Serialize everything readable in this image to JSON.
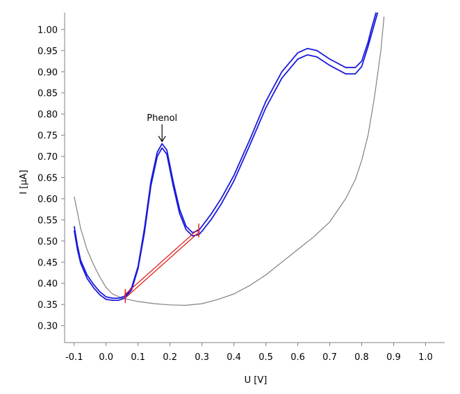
{
  "chart_data": {
    "type": "line",
    "title": "",
    "xlabel": "U [V]",
    "ylabel": "I [µA]",
    "xlim": [
      -0.13,
      1.06
    ],
    "ylim": [
      0.26,
      1.04
    ],
    "grid": false,
    "legend": "none",
    "x_ticks": [
      "-0.1",
      "0.0",
      "0.1",
      "0.2",
      "0.3",
      "0.4",
      "0.5",
      "0.6",
      "0.7",
      "0.8",
      "0.9",
      "1.0"
    ],
    "y_ticks": [
      "0.30",
      "0.35",
      "0.40",
      "0.45",
      "0.50",
      "0.55",
      "0.60",
      "0.65",
      "0.70",
      "0.75",
      "0.80",
      "0.85",
      "0.90",
      "0.95",
      "1.00"
    ],
    "series": [
      {
        "color": "#808080",
        "points": [
          [
            -0.1,
            0.605
          ],
          [
            -0.08,
            0.53
          ],
          [
            -0.06,
            0.48
          ],
          [
            -0.04,
            0.445
          ],
          [
            -0.02,
            0.415
          ],
          [
            0.0,
            0.39
          ],
          [
            0.02,
            0.375
          ],
          [
            0.05,
            0.365
          ],
          [
            0.1,
            0.357
          ],
          [
            0.15,
            0.352
          ],
          [
            0.2,
            0.349
          ],
          [
            0.25,
            0.348
          ],
          [
            0.3,
            0.352
          ],
          [
            0.35,
            0.362
          ],
          [
            0.4,
            0.375
          ],
          [
            0.45,
            0.395
          ],
          [
            0.5,
            0.42
          ],
          [
            0.55,
            0.45
          ],
          [
            0.6,
            0.48
          ],
          [
            0.65,
            0.51
          ],
          [
            0.7,
            0.545
          ],
          [
            0.75,
            0.6
          ],
          [
            0.78,
            0.645
          ],
          [
            0.8,
            0.69
          ],
          [
            0.82,
            0.75
          ],
          [
            0.84,
            0.84
          ],
          [
            0.86,
            0.95
          ],
          [
            0.87,
            1.03
          ]
        ]
      },
      {
        "color": "#1a1adc",
        "points": [
          [
            -0.1,
            0.535
          ],
          [
            -0.09,
            0.49
          ],
          [
            -0.08,
            0.455
          ],
          [
            -0.06,
            0.42
          ],
          [
            -0.04,
            0.398
          ],
          [
            -0.02,
            0.38
          ],
          [
            0.0,
            0.368
          ],
          [
            0.02,
            0.365
          ],
          [
            0.04,
            0.365
          ],
          [
            0.06,
            0.37
          ],
          [
            0.08,
            0.39
          ],
          [
            0.1,
            0.44
          ],
          [
            0.12,
            0.53
          ],
          [
            0.14,
            0.64
          ],
          [
            0.16,
            0.71
          ],
          [
            0.175,
            0.73
          ],
          [
            0.19,
            0.715
          ],
          [
            0.21,
            0.64
          ],
          [
            0.23,
            0.575
          ],
          [
            0.25,
            0.535
          ],
          [
            0.27,
            0.52
          ],
          [
            0.29,
            0.525
          ],
          [
            0.3,
            0.535
          ],
          [
            0.33,
            0.565
          ],
          [
            0.36,
            0.6
          ],
          [
            0.4,
            0.655
          ],
          [
            0.45,
            0.74
          ],
          [
            0.5,
            0.83
          ],
          [
            0.55,
            0.9
          ],
          [
            0.6,
            0.945
          ],
          [
            0.63,
            0.955
          ],
          [
            0.66,
            0.95
          ],
          [
            0.7,
            0.93
          ],
          [
            0.75,
            0.91
          ],
          [
            0.78,
            0.91
          ],
          [
            0.8,
            0.925
          ],
          [
            0.82,
            0.97
          ],
          [
            0.83,
            1.0
          ],
          [
            0.845,
            1.04
          ]
        ]
      },
      {
        "color": "#1a1adc",
        "points": [
          [
            -0.1,
            0.525
          ],
          [
            -0.09,
            0.48
          ],
          [
            -0.08,
            0.448
          ],
          [
            -0.06,
            0.412
          ],
          [
            -0.04,
            0.39
          ],
          [
            -0.02,
            0.373
          ],
          [
            0.0,
            0.362
          ],
          [
            0.02,
            0.36
          ],
          [
            0.04,
            0.36
          ],
          [
            0.06,
            0.366
          ],
          [
            0.08,
            0.385
          ],
          [
            0.1,
            0.435
          ],
          [
            0.12,
            0.52
          ],
          [
            0.14,
            0.63
          ],
          [
            0.16,
            0.7
          ],
          [
            0.175,
            0.72
          ],
          [
            0.19,
            0.705
          ],
          [
            0.21,
            0.63
          ],
          [
            0.23,
            0.565
          ],
          [
            0.25,
            0.527
          ],
          [
            0.27,
            0.512
          ],
          [
            0.29,
            0.515
          ],
          [
            0.3,
            0.523
          ],
          [
            0.33,
            0.552
          ],
          [
            0.36,
            0.587
          ],
          [
            0.4,
            0.642
          ],
          [
            0.45,
            0.727
          ],
          [
            0.5,
            0.815
          ],
          [
            0.55,
            0.885
          ],
          [
            0.6,
            0.93
          ],
          [
            0.63,
            0.94
          ],
          [
            0.66,
            0.935
          ],
          [
            0.7,
            0.915
          ],
          [
            0.75,
            0.895
          ],
          [
            0.78,
            0.895
          ],
          [
            0.8,
            0.912
          ],
          [
            0.82,
            0.96
          ],
          [
            0.835,
            1.0
          ],
          [
            0.85,
            1.04
          ]
        ]
      }
    ],
    "baseline": {
      "color": "#e02020",
      "from": [
        0.06,
        0.37
      ],
      "to": [
        0.29,
        0.525
      ]
    },
    "annotations": [
      {
        "text": "Phenol",
        "x": 0.175,
        "y": 0.73
      }
    ]
  }
}
